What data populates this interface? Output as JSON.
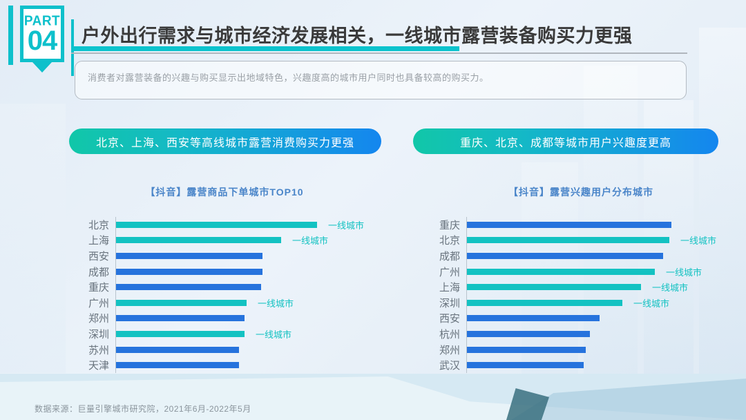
{
  "part_badge": {
    "part_label": "PART",
    "number": "04"
  },
  "header": {
    "title": "户外出行需求与城市经济发展相关，一线城市露营装备购买力更强",
    "description": "消费者对露营装备的兴趣与购买显示出地域特色，兴趣度高的城市用户同时也具备较高的购买力。"
  },
  "highlight_pills": [
    {
      "label": "北京、上海、西安等高线城市露营消费购买力更强"
    },
    {
      "label": "重庆、北京、成都等城市用户兴趣度更高"
    }
  ],
  "chart_data": [
    {
      "type": "bar",
      "orientation": "horizontal",
      "title": "【抖音】露营商品下单城市TOP10",
      "categories": [
        "北京",
        "上海",
        "西安",
        "成都",
        "重庆",
        "广州",
        "郑州",
        "深圳",
        "苏州",
        "天津"
      ],
      "values": [
        100,
        82,
        73,
        73,
        72,
        65,
        64,
        64,
        61,
        61
      ],
      "value_note": "relative index estimated from bar lengths, max = 100",
      "tier1_cities": [
        "北京",
        "上海",
        "广州",
        "深圳"
      ],
      "annotation_label": "一线城市",
      "bar_colors": {
        "tier1": "#13c2c2",
        "other": "#2673dd"
      },
      "grid": false,
      "legend": "none"
    },
    {
      "type": "bar",
      "orientation": "horizontal",
      "title": "【抖音】露营兴趣用户分布城市",
      "categories": [
        "重庆",
        "北京",
        "成都",
        "广州",
        "上海",
        "深圳",
        "西安",
        "杭州",
        "郑州",
        "武汉"
      ],
      "values": [
        100,
        99,
        96,
        92,
        85,
        76,
        65,
        60,
        58,
        57
      ],
      "value_note": "relative index estimated from bar lengths, max = 100",
      "tier1_cities": [
        "北京",
        "广州",
        "上海",
        "深圳"
      ],
      "annotation_label": "一线城市",
      "bar_colors": {
        "tier1": "#13c2c2",
        "other": "#2673dd"
      },
      "grid": false,
      "legend": "none"
    }
  ],
  "footer": {
    "source": "数据来源：巨量引擎城市研究院，2021年6月-2022年5月"
  },
  "colors": {
    "accent_teal": "#0ec0cb",
    "bar_teal": "#13c2c2",
    "bar_blue": "#2673dd",
    "title_text": "#3a3a3a",
    "chart_title_blue": "#4a85c9",
    "pill_gradient_start": "#11c7a8",
    "pill_gradient_end": "#1486ef",
    "background": "#e6eff8"
  }
}
